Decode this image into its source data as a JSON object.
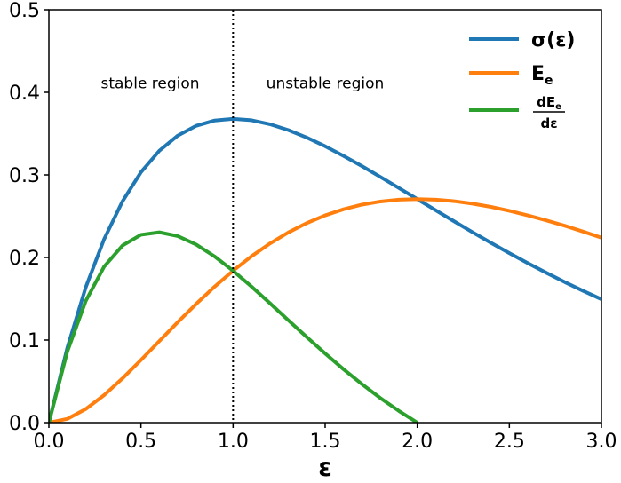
{
  "chart_data": {
    "type": "line",
    "xlabel": "ε",
    "ylabel": "",
    "xlim": [
      0.0,
      3.0
    ],
    "ylim": [
      0.0,
      0.5
    ],
    "xticks": [
      "0.0",
      "0.5",
      "1.0",
      "1.5",
      "2.0",
      "2.5",
      "3.0"
    ],
    "yticks": [
      "0.0",
      "0.1",
      "0.2",
      "0.3",
      "0.4",
      "0.5"
    ],
    "grid": false,
    "legend_position": "top-right",
    "vline": {
      "x": 1.0,
      "style": "dotted",
      "color": "#000000"
    },
    "annotations": [
      {
        "text": "stable region",
        "x": 0.55,
        "y": 0.405
      },
      {
        "text": "unstable region",
        "x": 1.5,
        "y": 0.405
      }
    ],
    "series": [
      {
        "name": "σ(ε)",
        "legend": {
          "main": "σ(ε)"
        },
        "color": "#1f77b4",
        "x": [
          0.0,
          0.1,
          0.2,
          0.3,
          0.4,
          0.5,
          0.6,
          0.7,
          0.8,
          0.9,
          1.0,
          1.1,
          1.2,
          1.3,
          1.4,
          1.5,
          1.6,
          1.7,
          1.8,
          1.9,
          2.0,
          2.1,
          2.2,
          2.3,
          2.4,
          2.5,
          2.6,
          2.7,
          2.8,
          2.9,
          3.0
        ],
        "y": [
          0.0,
          0.0905,
          0.1637,
          0.2222,
          0.2681,
          0.3033,
          0.3293,
          0.3476,
          0.3595,
          0.3659,
          0.3679,
          0.3662,
          0.3614,
          0.3543,
          0.3452,
          0.3347,
          0.323,
          0.3106,
          0.2975,
          0.2842,
          0.2707,
          0.2572,
          0.2438,
          0.2306,
          0.2177,
          0.2052,
          0.1931,
          0.1815,
          0.1703,
          0.1596,
          0.1494
        ]
      },
      {
        "name": "Ee",
        "legend": {
          "main": "E",
          "sub": "e"
        },
        "color": "#ff7f0e",
        "x": [
          0.0,
          0.1,
          0.2,
          0.3,
          0.4,
          0.5,
          0.6,
          0.7,
          0.8,
          0.9,
          1.0,
          1.1,
          1.2,
          1.3,
          1.4,
          1.5,
          1.6,
          1.7,
          1.8,
          1.9,
          2.0,
          2.1,
          2.2,
          2.3,
          2.4,
          2.5,
          2.6,
          2.7,
          2.8,
          2.9,
          3.0
        ],
        "y": [
          0.0,
          0.0045,
          0.0164,
          0.0333,
          0.0536,
          0.0758,
          0.0988,
          0.1217,
          0.1438,
          0.1647,
          0.1839,
          0.2014,
          0.2169,
          0.2303,
          0.2417,
          0.251,
          0.2584,
          0.264,
          0.2678,
          0.27,
          0.2707,
          0.27,
          0.2682,
          0.2652,
          0.2613,
          0.2565,
          0.251,
          0.245,
          0.2385,
          0.2314,
          0.224
        ]
      },
      {
        "name": "dEe/dε",
        "legend": {
          "num": "dE",
          "num_sub": "e",
          "den": "dε"
        },
        "color": "#2ca02c",
        "x": [
          0.0,
          0.1,
          0.2,
          0.3,
          0.4,
          0.5,
          0.6,
          0.7,
          0.8,
          0.9,
          1.0,
          1.1,
          1.2,
          1.3,
          1.4,
          1.5,
          1.6,
          1.7,
          1.8,
          1.9,
          2.0
        ],
        "y": [
          0.0,
          0.086,
          0.1473,
          0.1889,
          0.2145,
          0.2275,
          0.2305,
          0.2259,
          0.2157,
          0.2012,
          0.1839,
          0.1648,
          0.1446,
          0.124,
          0.1036,
          0.0837,
          0.0646,
          0.0466,
          0.0297,
          0.0142,
          0.0
        ]
      }
    ]
  }
}
